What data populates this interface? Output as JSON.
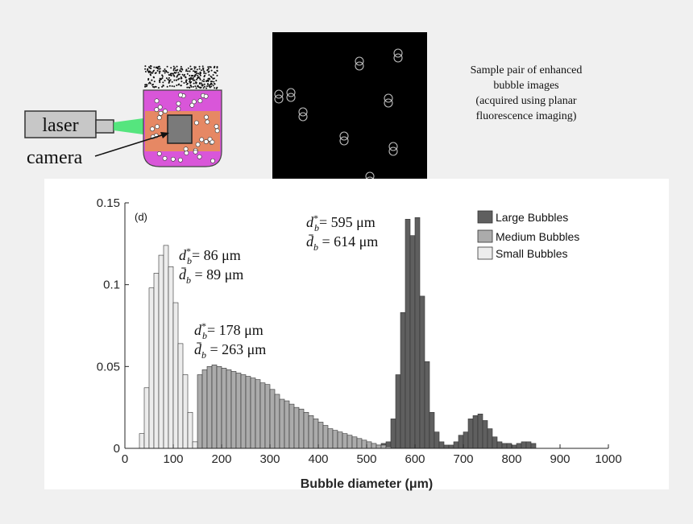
{
  "diagram": {
    "laser_label": "laser",
    "camera_label": "camera"
  },
  "caption": {
    "lines": [
      "Sample pair of enhanced",
      "bubble images",
      "(acquired using planar",
      "fluorescence imaging)"
    ]
  },
  "chart_data": {
    "type": "bar",
    "panel_label": "(d)",
    "xlabel": "Bubble diameter (μm)",
    "ylabel": "",
    "xlim": [
      0,
      1000
    ],
    "ylim": [
      0,
      0.15
    ],
    "xticks": [
      0,
      100,
      200,
      300,
      400,
      500,
      600,
      700,
      800,
      900,
      1000
    ],
    "yticks": [
      0,
      0.05,
      0.1,
      0.15
    ],
    "ytick_labels": [
      "0",
      "0.05",
      "0.1",
      "0.15"
    ],
    "bin_width": 10,
    "grid": false,
    "legend_position": "top-right",
    "series": [
      {
        "name": "Large Bubbles",
        "color": "#5f5f5f",
        "bin_starts": [
          450,
          460,
          470,
          480,
          490,
          500,
          510,
          520,
          530,
          540,
          550,
          560,
          570,
          580,
          590,
          600,
          610,
          620,
          630,
          640,
          650,
          660,
          670,
          680,
          690,
          700,
          710,
          720,
          730,
          740,
          750,
          760,
          770,
          780,
          790,
          800,
          810,
          820,
          830,
          840
        ],
        "values": [
          0.001,
          0.001,
          0.002,
          0.003,
          0.002,
          0.002,
          0.002,
          0.002,
          0.003,
          0.004,
          0.018,
          0.045,
          0.083,
          0.14,
          0.13,
          0.141,
          0.093,
          0.053,
          0.022,
          0.01,
          0.004,
          0.002,
          0.002,
          0.004,
          0.008,
          0.01,
          0.018,
          0.02,
          0.021,
          0.017,
          0.012,
          0.007,
          0.004,
          0.003,
          0.003,
          0.002,
          0.003,
          0.004,
          0.004,
          0.003
        ]
      },
      {
        "name": "Medium Bubbles",
        "color": "#ababab",
        "bin_starts": [
          150,
          160,
          170,
          180,
          190,
          200,
          210,
          220,
          230,
          240,
          250,
          260,
          270,
          280,
          290,
          300,
          310,
          320,
          330,
          340,
          350,
          360,
          370,
          380,
          390,
          400,
          410,
          420,
          430,
          440,
          450,
          460,
          470,
          480,
          490,
          500,
          510,
          520,
          530,
          540
        ],
        "values": [
          0.045,
          0.048,
          0.05,
          0.051,
          0.05,
          0.049,
          0.048,
          0.047,
          0.046,
          0.045,
          0.044,
          0.043,
          0.042,
          0.04,
          0.039,
          0.036,
          0.033,
          0.03,
          0.029,
          0.027,
          0.025,
          0.024,
          0.022,
          0.02,
          0.018,
          0.016,
          0.014,
          0.012,
          0.011,
          0.01,
          0.009,
          0.008,
          0.007,
          0.006,
          0.005,
          0.004,
          0.003,
          0.002,
          0.002,
          0.001
        ]
      },
      {
        "name": "Small Bubbles",
        "color": "#ececec",
        "bin_starts": [
          30,
          40,
          50,
          60,
          70,
          80,
          90,
          100,
          110,
          120,
          130,
          140
        ],
        "values": [
          0.009,
          0.037,
          0.098,
          0.107,
          0.118,
          0.124,
          0.111,
          0.089,
          0.064,
          0.045,
          0.022,
          0.004
        ]
      }
    ],
    "annotations": [
      {
        "star": "d*_b = 86 μm",
        "mean": "d̄_b = 89 μm",
        "star_value": "86 μm",
        "mean_value": "89 μm"
      },
      {
        "star": "d*_b = 178 μm",
        "mean": "d̄_b = 263 μm",
        "star_value": "178 μm",
        "mean_value": "263 μm"
      },
      {
        "star": "d*_b = 595 μm",
        "mean": "d̄_b = 614 μm",
        "star_value": "595 μm",
        "mean_value": "614 μm"
      }
    ]
  }
}
